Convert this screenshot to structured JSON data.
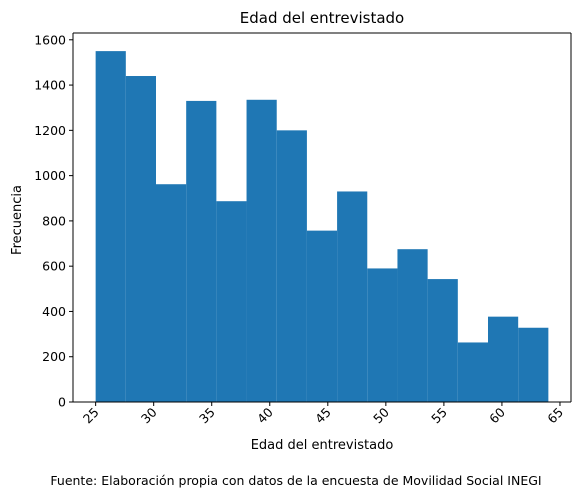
{
  "chart_data": {
    "type": "bar",
    "title": "Edad del entrevistado",
    "xlabel": "Edad del entrevistado",
    "ylabel": "Frecuencia",
    "caption": "Fuente: Elaboración propia con datos de la encuesta de Movilidad Social INEGI",
    "bar_color": "#1f77b4",
    "bin_edges": [
      25,
      27.6,
      30.2,
      32.8,
      35.4,
      38.0,
      40.6,
      43.2,
      45.8,
      48.4,
      51.0,
      53.6,
      56.2,
      58.8,
      61.4,
      64
    ],
    "values": [
      1550,
      1440,
      962,
      1330,
      887,
      1335,
      1200,
      757,
      930,
      590,
      675,
      543,
      263,
      377,
      328
    ],
    "xlim": [
      23.05,
      65.95
    ],
    "ylim": [
      0,
      1630
    ],
    "x_ticks": [
      25,
      30,
      35,
      40,
      45,
      50,
      55,
      60,
      65
    ],
    "x_tick_labels": [
      "25",
      "30",
      "35",
      "40",
      "45",
      "50",
      "55",
      "60",
      "65"
    ],
    "y_ticks": [
      0,
      200,
      400,
      600,
      800,
      1000,
      1200,
      1400,
      1600
    ],
    "y_tick_labels": [
      "0",
      "200",
      "400",
      "600",
      "800",
      "1000",
      "1200",
      "1400",
      "1600"
    ],
    "grid": false,
    "legend": false
  }
}
